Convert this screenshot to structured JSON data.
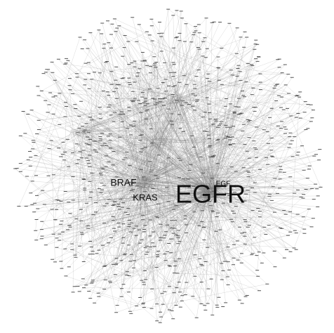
{
  "nodes": [
    {
      "label": "EGFR"
    },
    {
      "label": "BRAF"
    },
    {
      "label": "KRAS"
    },
    {
      "label": "EGF"
    }
  ]
}
